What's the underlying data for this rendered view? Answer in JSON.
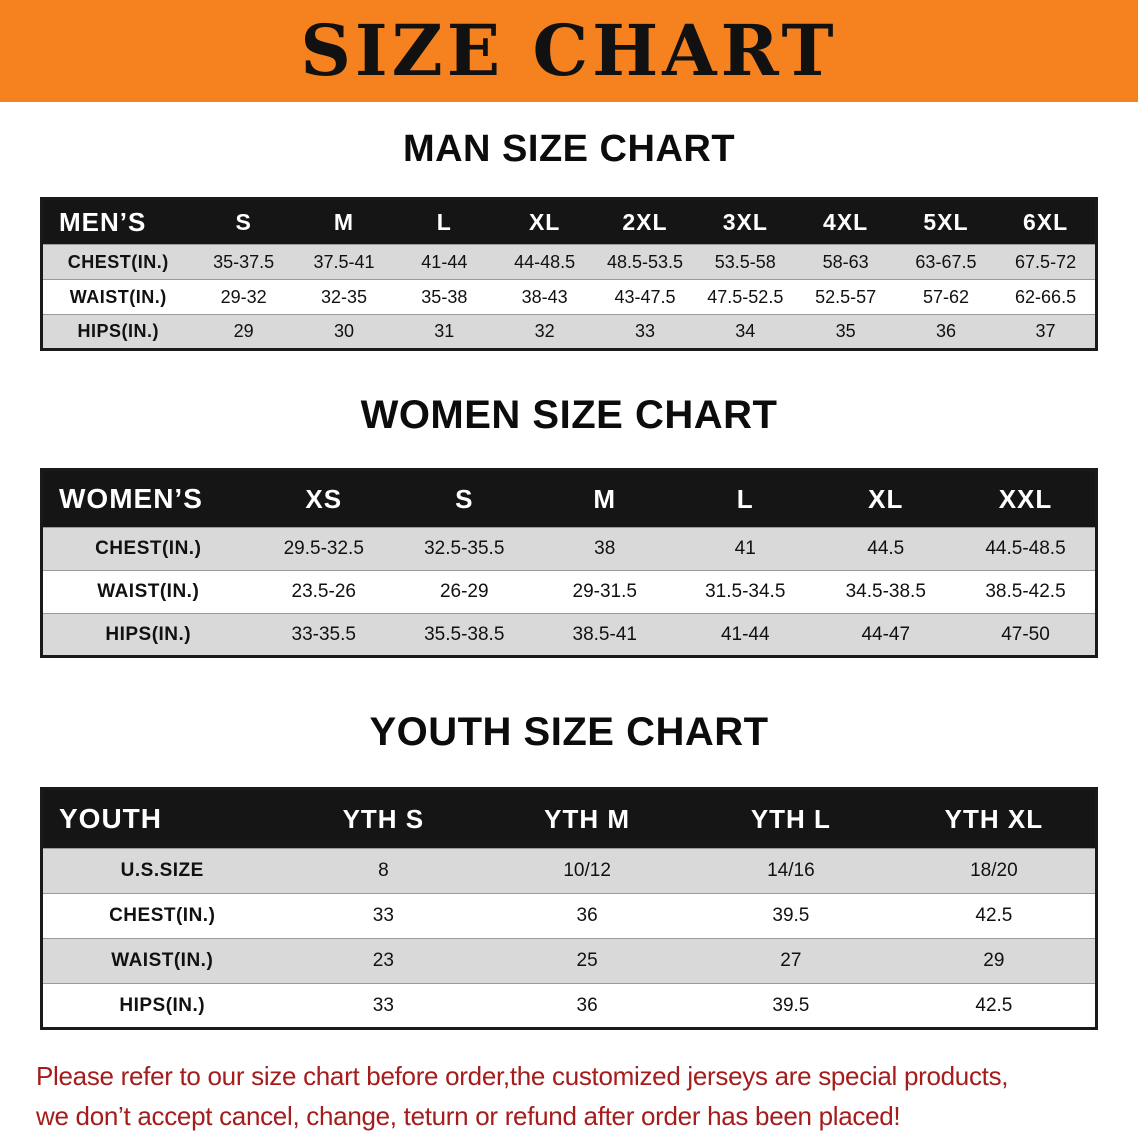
{
  "banner": {
    "title": "SIZE CHART"
  },
  "colors": {
    "banner_bg": "#f5821f",
    "banner_text": "#111111",
    "table_header_bg": "#151515",
    "table_header_text": "#ffffff",
    "row_gray": "#d9d9d9",
    "row_white": "#ffffff",
    "border_dark": "#1a1a1a",
    "disclaimer_red": "#a51c1c"
  },
  "sections": [
    {
      "heading": "MAN SIZE CHART",
      "table": {
        "header": [
          "MEN’S",
          "S",
          "M",
          "L",
          "XL",
          "2XL",
          "3XL",
          "4XL",
          "5XL",
          "6XL"
        ],
        "rows": [
          [
            "CHEST(IN.)",
            "35-37.5",
            "37.5-41",
            "41-44",
            "44-48.5",
            "48.5-53.5",
            "53.5-58",
            "58-63",
            "63-67.5",
            "67.5-72"
          ],
          [
            "WAIST(IN.)",
            "29-32",
            "32-35",
            "35-38",
            "38-43",
            "43-47.5",
            "47.5-52.5",
            "52.5-57",
            "57-62",
            "62-66.5"
          ],
          [
            "HIPS(IN.)",
            "29",
            "30",
            "31",
            "32",
            "33",
            "34",
            "35",
            "36",
            "37"
          ]
        ]
      }
    },
    {
      "heading": "WOMEN SIZE CHART",
      "table": {
        "header": [
          "WOMEN’S",
          "XS",
          "S",
          "M",
          "L",
          "XL",
          "XXL"
        ],
        "rows": [
          [
            "CHEST(IN.)",
            "29.5-32.5",
            "32.5-35.5",
            "38",
            "41",
            "44.5",
            "44.5-48.5"
          ],
          [
            "WAIST(IN.)",
            "23.5-26",
            "26-29",
            "29-31.5",
            "31.5-34.5",
            "34.5-38.5",
            "38.5-42.5"
          ],
          [
            "HIPS(IN.)",
            "33-35.5",
            "35.5-38.5",
            "38.5-41",
            "41-44",
            "44-47",
            "47-50"
          ]
        ]
      }
    },
    {
      "heading": "YOUTH SIZE CHART",
      "table": {
        "header": [
          "YOUTH",
          "YTH S",
          "YTH M",
          "YTH L",
          "YTH XL"
        ],
        "rows": [
          [
            "U.S.SIZE",
            "8",
            "10/12",
            "14/16",
            "18/20"
          ],
          [
            "CHEST(IN.)",
            "33",
            "36",
            "39.5",
            "42.5"
          ],
          [
            "WAIST(IN.)",
            "23",
            "25",
            "27",
            "29"
          ],
          [
            "HIPS(IN.)",
            "33",
            "36",
            "39.5",
            "42.5"
          ]
        ]
      }
    }
  ],
  "disclaimer": {
    "line1": "Please refer to our size chart before order,the customized jerseys are special products,",
    "line2": "we don’t accept cancel, change, teturn or refund after order has been placed!"
  }
}
